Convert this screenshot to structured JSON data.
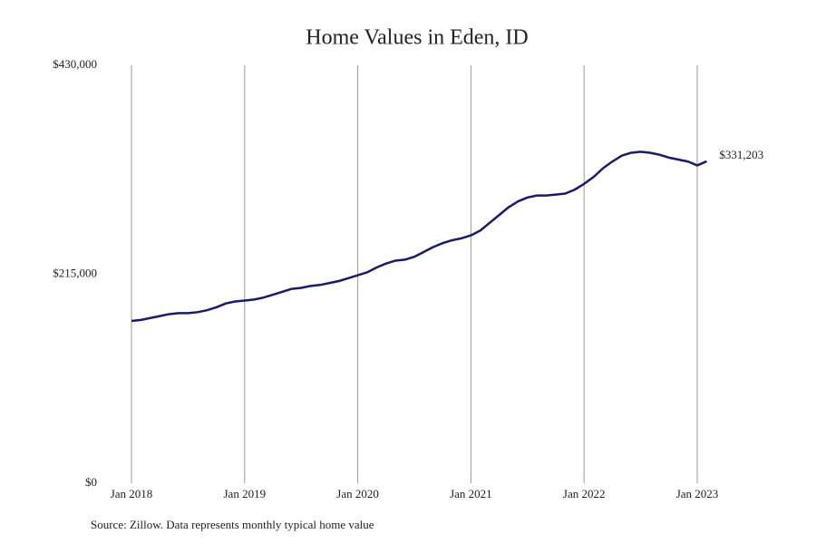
{
  "chart_data": {
    "type": "line",
    "title": "Home Values in Eden, ID",
    "source": "Source: Zillow. Data represents monthly typical home value",
    "x": [
      "2018-01",
      "2018-02",
      "2018-03",
      "2018-04",
      "2018-05",
      "2018-06",
      "2018-07",
      "2018-08",
      "2018-09",
      "2018-10",
      "2018-11",
      "2018-12",
      "2019-01",
      "2019-02",
      "2019-03",
      "2019-04",
      "2019-05",
      "2019-06",
      "2019-07",
      "2019-08",
      "2019-09",
      "2019-10",
      "2019-11",
      "2019-12",
      "2020-01",
      "2020-02",
      "2020-03",
      "2020-04",
      "2020-05",
      "2020-06",
      "2020-07",
      "2020-08",
      "2020-09",
      "2020-10",
      "2020-11",
      "2020-12",
      "2021-01",
      "2021-02",
      "2021-03",
      "2021-04",
      "2021-05",
      "2021-06",
      "2021-07",
      "2021-08",
      "2021-09",
      "2021-10",
      "2021-11",
      "2021-12",
      "2022-01",
      "2022-02",
      "2022-03",
      "2022-04",
      "2022-05",
      "2022-06",
      "2022-07",
      "2022-08",
      "2022-09",
      "2022-10",
      "2022-11",
      "2022-12",
      "2023-01",
      "2023-02"
    ],
    "series": [
      {
        "name": "Eden, ID",
        "color": "#1b1c63",
        "values": [
          167000,
          168000,
          170000,
          172000,
          174000,
          175000,
          175000,
          176000,
          178000,
          181000,
          185000,
          187000,
          188000,
          189000,
          191000,
          194000,
          197000,
          200000,
          201000,
          203000,
          204000,
          206000,
          208000,
          211000,
          214000,
          217000,
          222000,
          226000,
          229000,
          230000,
          233000,
          238000,
          243000,
          247000,
          250000,
          252000,
          255000,
          260000,
          268000,
          276000,
          284000,
          290000,
          294000,
          296000,
          296000,
          297000,
          298000,
          302000,
          308000,
          315000,
          324000,
          331000,
          337000,
          340000,
          341000,
          340000,
          338000,
          335000,
          333000,
          331000,
          327000,
          331203
        ],
        "value_labels": [
          null,
          null,
          null,
          null,
          null,
          null,
          null,
          null,
          null,
          null,
          null,
          null,
          null,
          null,
          null,
          null,
          null,
          null,
          null,
          null,
          null,
          null,
          null,
          null,
          null,
          null,
          null,
          null,
          null,
          null,
          null,
          null,
          null,
          null,
          null,
          null,
          null,
          null,
          null,
          null,
          null,
          null,
          null,
          null,
          null,
          null,
          null,
          null,
          null,
          null,
          null,
          null,
          null,
          null,
          null,
          null,
          null,
          null,
          null,
          null,
          null,
          "$331,203"
        ]
      }
    ],
    "ylim": [
      0,
      430000
    ],
    "yticks": [
      {
        "value": 0,
        "label": "$0"
      },
      {
        "value": 215000,
        "label": "$215,000"
      },
      {
        "value": 430000,
        "label": "$430,000"
      }
    ],
    "xticks": [
      {
        "value": "2018-01",
        "label": "Jan 2018"
      },
      {
        "value": "2019-01",
        "label": "Jan 2019"
      },
      {
        "value": "2020-01",
        "label": "Jan 2020"
      },
      {
        "value": "2021-01",
        "label": "Jan 2021"
      },
      {
        "value": "2022-01",
        "label": "Jan 2022"
      },
      {
        "value": "2023-01",
        "label": "Jan 2023"
      }
    ],
    "grid": "x"
  }
}
